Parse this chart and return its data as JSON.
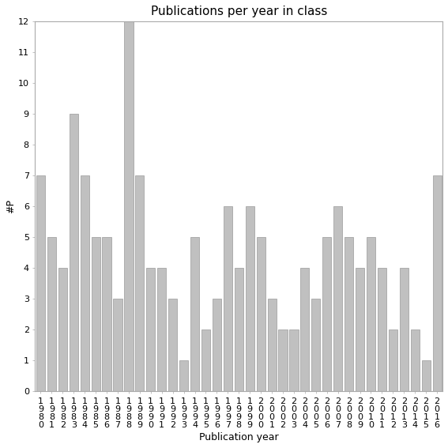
{
  "title": "Publications per year in class",
  "xlabel": "Publication year",
  "ylabel": "#P",
  "years": [
    "1980",
    "1981",
    "1982",
    "1983",
    "1984",
    "1985",
    "1986",
    "1987",
    "1988",
    "1989",
    "1990",
    "1991",
    "1992",
    "1993",
    "1994",
    "1995",
    "1996",
    "1997",
    "1998",
    "1999",
    "2000",
    "2001",
    "2002",
    "2003",
    "2004",
    "2005",
    "2006",
    "2007",
    "2008",
    "2009",
    "2010",
    "2011",
    "2012",
    "2013",
    "2014",
    "2015",
    "2016"
  ],
  "values": [
    7,
    5,
    4,
    9,
    7,
    5,
    5,
    3,
    12,
    7,
    4,
    4,
    3,
    1,
    5,
    2,
    3,
    6,
    4,
    6,
    5,
    3,
    2,
    2,
    4,
    3,
    5,
    6,
    5,
    4,
    5,
    4,
    2,
    4,
    2,
    1,
    7
  ],
  "bar_color": "#c0c0c0",
  "bar_edge_color": "#999999",
  "ylim": [
    0,
    12
  ],
  "yticks": [
    0,
    1,
    2,
    3,
    4,
    5,
    6,
    7,
    8,
    9,
    10,
    11,
    12
  ],
  "background_color": "#ffffff",
  "title_fontsize": 11,
  "axis_fontsize": 9,
  "tick_fontsize": 8
}
